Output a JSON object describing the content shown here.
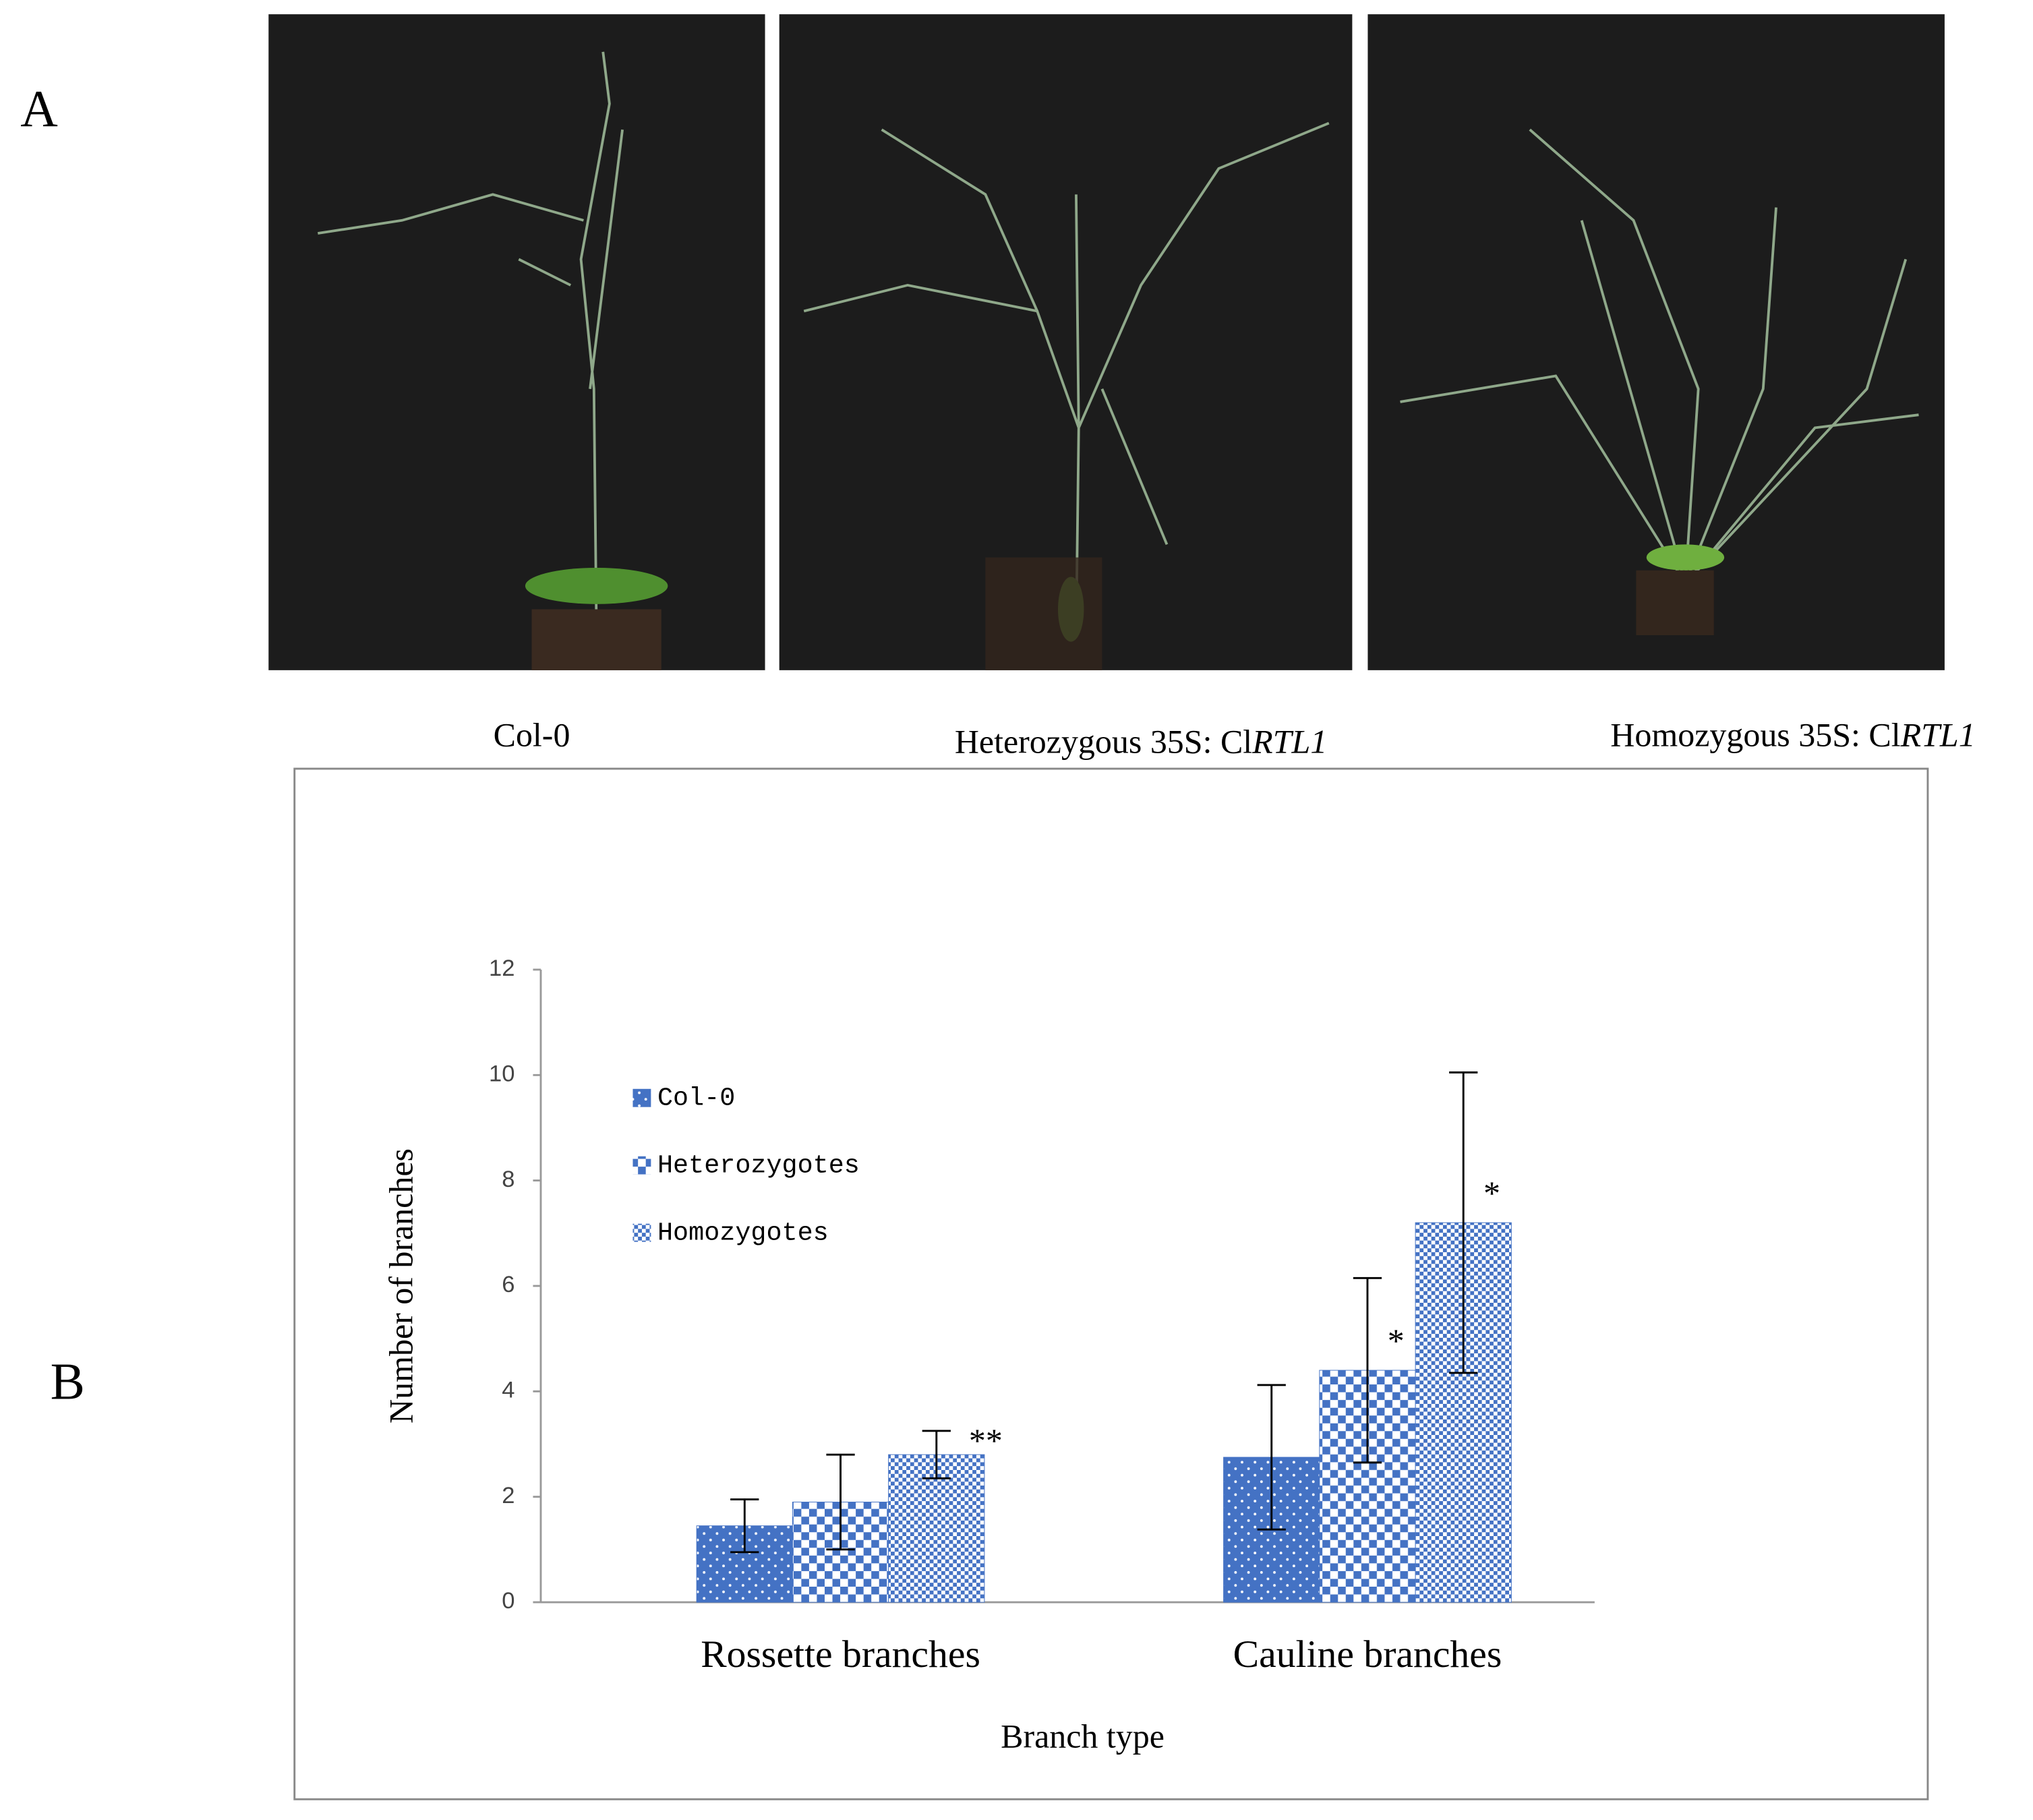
{
  "figure": {
    "panel_a": {
      "label": "A",
      "captions": [
        {
          "text": "Col-0"
        },
        {
          "text": "Heterozygous 35S: Cl",
          "italic": "RTL1"
        },
        {
          "text": "Homozygous 35S: Cl",
          "italic": "RTL1"
        }
      ]
    },
    "panel_b": {
      "label": "B"
    }
  },
  "chart_data": {
    "type": "bar",
    "x_label": "Branch type",
    "y_label": "Number of branches",
    "categories": [
      "Rossette branches",
      "Cauline branches"
    ],
    "series": [
      {
        "name": "Col-0",
        "color": "#4472c4",
        "pattern": "dots",
        "values": [
          1.45,
          2.75
        ],
        "errors": [
          0.5,
          1.37
        ],
        "significance": [
          null,
          null
        ]
      },
      {
        "name": "Heterozygotes",
        "color": "#4472c4",
        "pattern": "checker",
        "values": [
          1.9,
          4.4
        ],
        "errors": [
          0.9,
          1.75
        ],
        "significance": [
          null,
          "*"
        ]
      },
      {
        "name": "Homozygotes",
        "color": "#4472c4",
        "pattern": "finechecker",
        "values": [
          2.8,
          7.2
        ],
        "errors": [
          0.45,
          2.85
        ],
        "significance": [
          "**",
          "*"
        ]
      }
    ],
    "ylim": [
      0,
      12
    ],
    "yticks": [
      0,
      2,
      4,
      6,
      8,
      10,
      12
    ],
    "grid": false,
    "legend": "upper left"
  }
}
